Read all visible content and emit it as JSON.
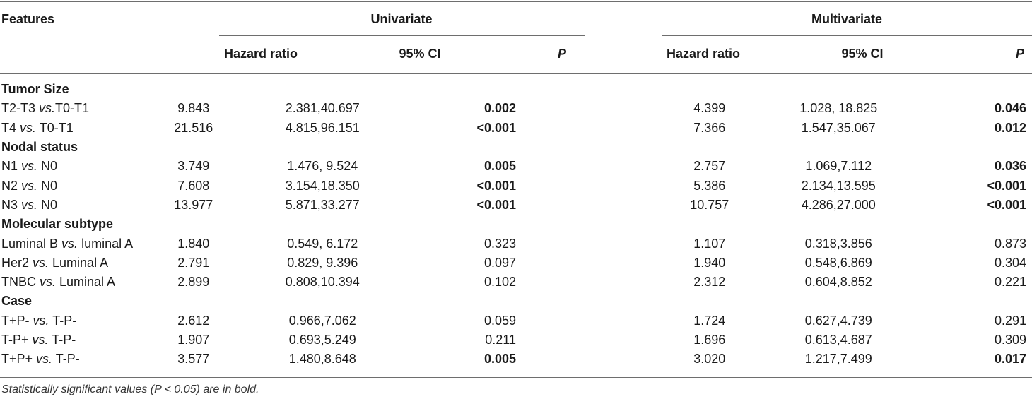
{
  "headers": {
    "features": "Features",
    "univariate": "Univariate",
    "multivariate": "Multivariate",
    "hazard_ratio": "Hazard ratio",
    "ci": "95% CI",
    "p": "P"
  },
  "rows": [
    {
      "type": "section",
      "label": "Tumor Size"
    },
    {
      "type": "data",
      "pre": "T2-T3 ",
      "vs": "vs.",
      "post": "T0-T1",
      "hr1": "9.843",
      "ci1": "2.381,40.697",
      "p1": "0.002",
      "p1_bold": true,
      "hr2": "4.399",
      "ci2": "1.028, 18.825",
      "p2": "0.046",
      "p2_bold": true
    },
    {
      "type": "data",
      "pre": "T4 ",
      "vs": "vs.",
      "post": " T0-T1",
      "hr1": "21.516",
      "ci1": "4.815,96.151",
      "p1": "<0.001",
      "p1_bold": true,
      "hr2": "7.366",
      "ci2": "1.547,35.067",
      "p2": "0.012",
      "p2_bold": true
    },
    {
      "type": "section",
      "label": "Nodal status"
    },
    {
      "type": "data",
      "pre": "N1 ",
      "vs": "vs.",
      "post": " N0",
      "hr1": "3.749",
      "ci1": "1.476, 9.524",
      "p1": "0.005",
      "p1_bold": true,
      "hr2": "2.757",
      "ci2": "1.069,7.112",
      "p2": "0.036",
      "p2_bold": true
    },
    {
      "type": "data",
      "pre": "N2 ",
      "vs": "vs.",
      "post": " N0",
      "hr1": "7.608",
      "ci1": "3.154,18.350",
      "p1": "<0.001",
      "p1_bold": true,
      "hr2": "5.386",
      "ci2": "2.134,13.595",
      "p2": "<0.001",
      "p2_bold": true
    },
    {
      "type": "data",
      "pre": "N3 ",
      "vs": "vs.",
      "post": " N0",
      "hr1": "13.977",
      "ci1": "5.871,33.277",
      "p1": "<0.001",
      "p1_bold": true,
      "hr2": "10.757",
      "ci2": "4.286,27.000",
      "p2": "<0.001",
      "p2_bold": true
    },
    {
      "type": "section",
      "label": "Molecular subtype"
    },
    {
      "type": "data",
      "pre": "Luminal B ",
      "vs": "vs.",
      "post": " luminal A",
      "hr1": "1.840",
      "ci1": "0.549, 6.172",
      "p1": "0.323",
      "p1_bold": false,
      "hr2": "1.107",
      "ci2": "0.318,3.856",
      "p2": "0.873",
      "p2_bold": false
    },
    {
      "type": "data",
      "pre": "Her2 ",
      "vs": "vs.",
      "post": " Luminal A",
      "hr1": "2.791",
      "ci1": "0.829, 9.396",
      "p1": "0.097",
      "p1_bold": false,
      "hr2": "1.940",
      "ci2": "0.548,6.869",
      "p2": "0.304",
      "p2_bold": false
    },
    {
      "type": "data",
      "pre": "TNBC ",
      "vs": "vs.",
      "post": " Luminal A",
      "hr1": "2.899",
      "ci1": "0.808,10.394",
      "p1": "0.102",
      "p1_bold": false,
      "hr2": "2.312",
      "ci2": "0.604,8.852",
      "p2": "0.221",
      "p2_bold": false
    },
    {
      "type": "section",
      "label": "Case"
    },
    {
      "type": "data",
      "pre": "T+P- ",
      "vs": "vs.",
      "post": " T-P-",
      "hr1": "2.612",
      "ci1": "0.966,7.062",
      "p1": "0.059",
      "p1_bold": false,
      "hr2": "1.724",
      "ci2": "0.627,4.739",
      "p2": "0.291",
      "p2_bold": false
    },
    {
      "type": "data",
      "pre": "T-P+ ",
      "vs": "vs.",
      "post": " T-P-",
      "hr1": "1.907",
      "ci1": "0.693,5.249",
      "p1": "0.211",
      "p1_bold": false,
      "hr2": "1.696",
      "ci2": "0.613,4.687",
      "p2": "0.309",
      "p2_bold": false
    },
    {
      "type": "data",
      "pre": "T+P+ ",
      "vs": "vs.",
      "post": " T-P-",
      "hr1": "3.577",
      "ci1": "1.480,8.648",
      "p1": "0.005",
      "p1_bold": true,
      "hr2": "3.020",
      "ci2": "1.217,7.499",
      "p2": "0.017",
      "p2_bold": true
    }
  ],
  "footnote": "Statistically significant values (P < 0.05) are in bold."
}
